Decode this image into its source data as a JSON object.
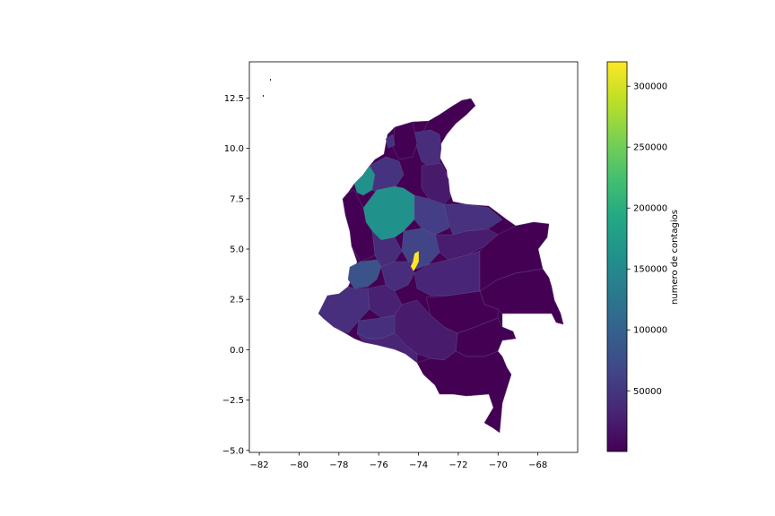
{
  "chart_data": {
    "type": "choropleth",
    "title": "",
    "xlabel": "",
    "ylabel": "",
    "xlim": [
      -82.5,
      -66.0
    ],
    "ylim": [
      -5.1,
      14.3
    ],
    "x_ticks": [
      -82,
      -80,
      -78,
      -76,
      -74,
      -72,
      -70,
      -68
    ],
    "x_tick_labels": [
      "−82",
      "−80",
      "−78",
      "−76",
      "−74",
      "−72",
      "−70",
      "−68"
    ],
    "y_ticks": [
      -5.0,
      -2.5,
      0.0,
      2.5,
      5.0,
      7.5,
      10.0,
      12.5
    ],
    "y_tick_labels": [
      "−5.0",
      "−2.5",
      "0.0",
      "2.5",
      "5.0",
      "7.5",
      "10.0",
      "12.5"
    ],
    "grid": false,
    "colormap": "viridis",
    "colorbar": {
      "label": "numero de contagios",
      "range": [
        200,
        320000
      ],
      "ticks": [
        50000,
        100000,
        150000,
        200000,
        250000,
        300000
      ],
      "tick_labels": [
        "50000",
        "100000",
        "150000",
        "200000",
        "250000",
        "300000"
      ],
      "colors": [
        "#440154",
        "#482475",
        "#414487",
        "#355f8d",
        "#2a788e",
        "#21918c",
        "#22a884",
        "#44bf70",
        "#7ad151",
        "#bddf26",
        "#fde725"
      ]
    },
    "regions_note_colors": {
      "bogota": "#fde725",
      "antioquia": "#21918c",
      "valle": "#3b528b",
      "default": "#440154"
    }
  }
}
